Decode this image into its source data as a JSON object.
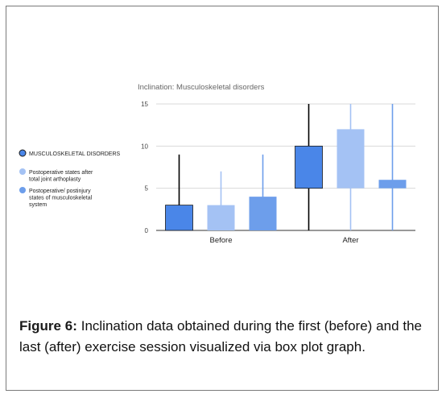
{
  "figure": {
    "label": "Figure 6:",
    "caption": "Inclination data obtained during the first (before) and the last (after) exercise session visualized via box plot graph."
  },
  "chart_data": {
    "type": "box",
    "title": "Inclination: Musculoskeletal disorders",
    "xlabel": "",
    "ylabel": "",
    "ylim": [
      0,
      15
    ],
    "yticks": [
      0,
      5,
      10,
      15
    ],
    "grid": true,
    "legend_position": "left",
    "categories": [
      "Before",
      "After"
    ],
    "series": [
      {
        "name": "MUSCULOSKELETAL DISORDERS",
        "color": "#4a86e8",
        "boxes": [
          {
            "category": "Before",
            "whisker_low": 0,
            "q1": 0,
            "q3": 3,
            "whisker_high": 9
          },
          {
            "category": "After",
            "whisker_low": 0,
            "q1": 5,
            "q3": 10,
            "whisker_high": 15
          }
        ]
      },
      {
        "name": "Postoperative states after total joint arthoplasty",
        "color": "#a4c2f4",
        "boxes": [
          {
            "category": "Before",
            "whisker_low": 0,
            "q1": 0,
            "q3": 3,
            "whisker_high": 7
          },
          {
            "category": "After",
            "whisker_low": 0,
            "q1": 5,
            "q3": 12,
            "whisker_high": 15
          }
        ]
      },
      {
        "name": "Postoperative/ postinjury states of musculoskeletal system",
        "color": "#6d9eeb",
        "boxes": [
          {
            "category": "Before",
            "whisker_low": 0,
            "q1": 0,
            "q3": 4,
            "whisker_high": 9
          },
          {
            "category": "After",
            "whisker_low": 0,
            "q1": 5,
            "q3": 6,
            "whisker_high": 15
          }
        ]
      }
    ]
  }
}
